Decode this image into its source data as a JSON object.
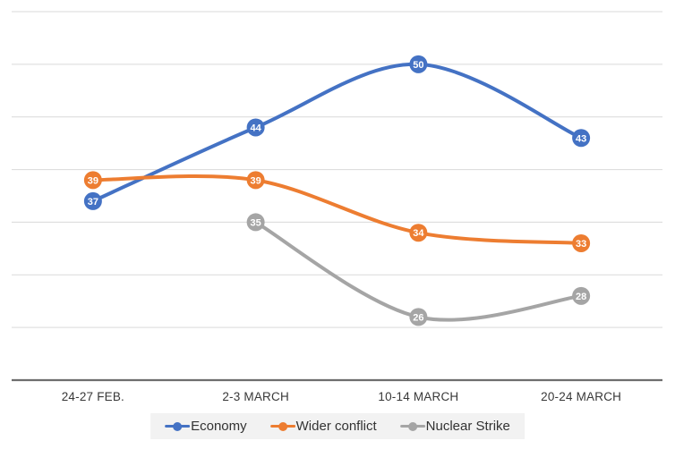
{
  "chart_data": {
    "type": "line",
    "categories": [
      "24-27 FEB.",
      "2-3 MARCH",
      "10-14 MARCH",
      "20-24 MARCH"
    ],
    "series": [
      {
        "name": "Economy",
        "color": "#4472C4",
        "values": [
          37,
          44,
          50,
          43
        ]
      },
      {
        "name": "Wider conflict",
        "color": "#ED7D31",
        "values": [
          39,
          39,
          34,
          33
        ]
      },
      {
        "name": "Nuclear Strike",
        "color": "#A5A5A5",
        "values": [
          null,
          35,
          26,
          28
        ]
      }
    ],
    "ylim": [
      20,
      55
    ],
    "grid_interval": 5,
    "grid": "horizontal-only",
    "y_tick_labels_visible": false,
    "smoothed": true,
    "data_labels": "centered-on-marker",
    "legend_position": "bottom-center",
    "colors": {
      "gridline": "#D9D9D9",
      "axis_line": "#6E6E6E",
      "axis_label": "#383838",
      "legend_bg": "#F2F2F2",
      "legend_text": "#333333",
      "marker_label": "#FFFFFF",
      "background": "#FFFFFF"
    }
  }
}
